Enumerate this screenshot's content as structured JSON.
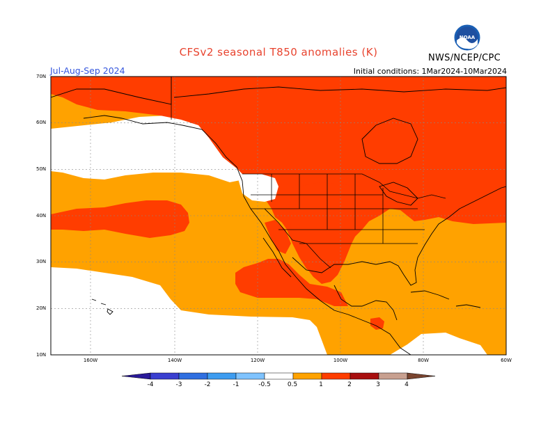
{
  "header": {
    "title": "CFSv2 seasonal T850 anomalies (K)",
    "season": "Jul-Aug-Sep 2024",
    "initial_conditions": "Initial conditions: 1Mar2024-10Mar2024",
    "agency": "NWS/NCEP/CPC",
    "logo_text": "NOAA"
  },
  "axes": {
    "lat_labels": [
      "70N",
      "60N",
      "50N",
      "40N",
      "30N",
      "20N",
      "10N"
    ],
    "lon_labels": [
      "160W",
      "140W",
      "120W",
      "100W",
      "80W",
      "60W"
    ]
  },
  "colorbar": {
    "tick_labels": [
      "-4",
      "-3",
      "-2",
      "-1",
      "-0.5",
      "0.5",
      "1",
      "2",
      "3",
      "4"
    ],
    "colors": [
      "#2a1a99",
      "#3a3fd0",
      "#2f6fe0",
      "#3d9cf0",
      "#7fc3ff",
      "#ffffff",
      "#ffa200",
      "#ff3d00",
      "#a80f0f",
      "#c8a090",
      "#7a4530"
    ]
  },
  "map_colors": {
    "none": "#ffffff",
    "anom_0_5_1": "#ffa200",
    "anom_1_2": "#ff3d00"
  }
}
